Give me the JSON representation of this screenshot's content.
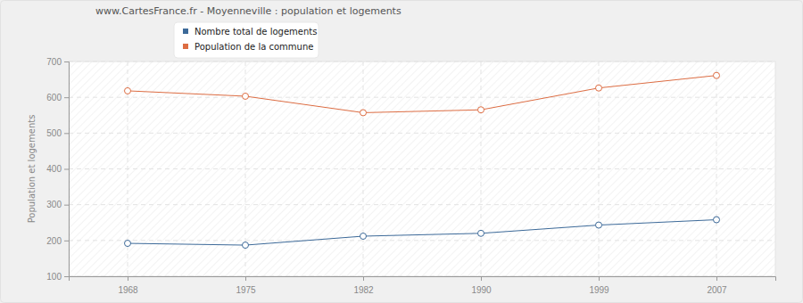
{
  "chart_data": {
    "type": "line",
    "title": "www.CartesFrance.fr - Moyenneville : population et logements",
    "y_label": "Population et logements",
    "categories": [
      "1968",
      "1975",
      "1982",
      "1990",
      "1999",
      "2007"
    ],
    "series": [
      {
        "name": "Nombre total de logements",
        "color": "#3d6a99",
        "marker": "circle",
        "values": [
          192,
          187,
          212,
          220,
          243,
          258
        ]
      },
      {
        "name": "Population de la commune",
        "color": "#dd6d43",
        "marker": "circle",
        "values": [
          618,
          603,
          557,
          565,
          626,
          661
        ]
      }
    ],
    "ylim": [
      100,
      700
    ],
    "yticks": [
      100,
      200,
      300,
      400,
      500,
      600,
      700
    ],
    "grid": true
  }
}
